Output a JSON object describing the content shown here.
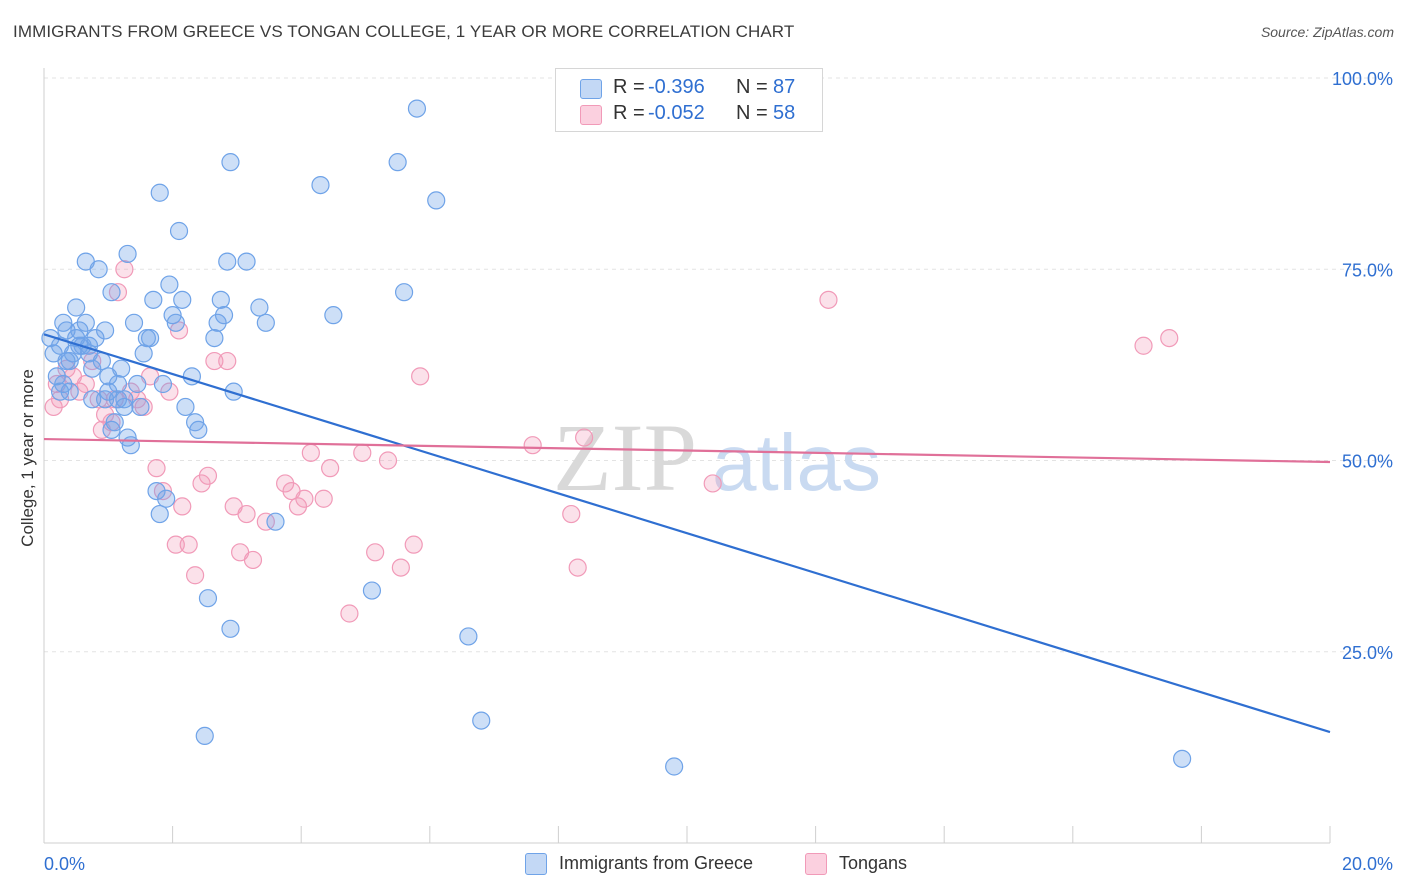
{
  "title": "IMMIGRANTS FROM GREECE VS TONGAN COLLEGE, 1 YEAR OR MORE CORRELATION CHART",
  "source": "Source: ZipAtlas.com",
  "watermark": {
    "zip": "ZIP",
    "atlas": "atlas"
  },
  "legend_top": [
    {
      "r_label": "R =",
      "r_value": "-0.396",
      "n_label": "N =",
      "n_value": "87"
    },
    {
      "r_label": "R =",
      "r_value": "-0.052",
      "n_label": "N =",
      "n_value": "58"
    }
  ],
  "colors": {
    "blue": "#6fa3e8",
    "blue_line": "#2f6fd1",
    "pink": "#f19ab8",
    "pink_line": "#e07099",
    "tick_text": "#2f6fd1"
  },
  "chart_data": {
    "type": "scatter",
    "xlabel": "",
    "ylabel": "College, 1 year or more",
    "xlim": [
      0,
      20
    ],
    "ylim": [
      0,
      100
    ],
    "x_tick_labels": [
      "0.0%",
      "20.0%"
    ],
    "y_ticks": [
      25,
      50,
      75,
      100
    ],
    "y_tick_labels": [
      "25.0%",
      "50.0%",
      "75.0%",
      "100.0%"
    ],
    "grid": true,
    "series": [
      {
        "name": "Immigrants from Greece",
        "color": "#6fa3e8",
        "trend": {
          "x": [
            0,
            20
          ],
          "y": [
            66.5,
            14.5
          ]
        },
        "points": [
          [
            0.1,
            66
          ],
          [
            0.15,
            64
          ],
          [
            0.2,
            61
          ],
          [
            0.25,
            59
          ],
          [
            0.3,
            68
          ],
          [
            0.35,
            67
          ],
          [
            0.4,
            63
          ],
          [
            0.45,
            64
          ],
          [
            0.5,
            66
          ],
          [
            0.55,
            67
          ],
          [
            0.6,
            65
          ],
          [
            0.65,
            68
          ],
          [
            0.7,
            64
          ],
          [
            0.75,
            58
          ],
          [
            0.8,
            66
          ],
          [
            0.9,
            63
          ],
          [
            0.95,
            67
          ],
          [
            1.0,
            59
          ],
          [
            1.05,
            54
          ],
          [
            1.1,
            55
          ],
          [
            1.15,
            60
          ],
          [
            1.2,
            62
          ],
          [
            1.25,
            57
          ],
          [
            1.3,
            53
          ],
          [
            1.35,
            52
          ],
          [
            1.4,
            68
          ],
          [
            1.45,
            60
          ],
          [
            1.5,
            57
          ],
          [
            1.55,
            64
          ],
          [
            1.6,
            66
          ],
          [
            1.7,
            71
          ],
          [
            1.75,
            46
          ],
          [
            1.8,
            43
          ],
          [
            1.85,
            60
          ],
          [
            1.9,
            45
          ],
          [
            1.95,
            73
          ],
          [
            2.0,
            69
          ],
          [
            2.05,
            68
          ],
          [
            2.15,
            71
          ],
          [
            2.2,
            57
          ],
          [
            2.35,
            55
          ],
          [
            2.4,
            54
          ],
          [
            2.55,
            32
          ],
          [
            2.65,
            66
          ],
          [
            2.7,
            68
          ],
          [
            2.75,
            71
          ],
          [
            2.8,
            69
          ],
          [
            2.85,
            76
          ],
          [
            2.9,
            28
          ],
          [
            2.95,
            59
          ],
          [
            3.15,
            76
          ],
          [
            3.35,
            70
          ],
          [
            3.45,
            68
          ],
          [
            3.6,
            42
          ],
          [
            4.3,
            86
          ],
          [
            4.5,
            69
          ],
          [
            5.1,
            33
          ],
          [
            5.5,
            89
          ],
          [
            5.6,
            72
          ],
          [
            5.8,
            96
          ],
          [
            6.1,
            84
          ],
          [
            6.6,
            27
          ],
          [
            6.8,
            16
          ],
          [
            9.8,
            10
          ],
          [
            17.7,
            11
          ],
          [
            2.5,
            14
          ],
          [
            1.8,
            85
          ],
          [
            2.1,
            80
          ],
          [
            2.9,
            89
          ],
          [
            1.3,
            77
          ],
          [
            0.85,
            75
          ],
          [
            0.65,
            76
          ],
          [
            1.05,
            72
          ],
          [
            0.5,
            70
          ],
          [
            0.7,
            65
          ],
          [
            1.25,
            58
          ],
          [
            0.35,
            63
          ],
          [
            0.95,
            58
          ],
          [
            1.65,
            66
          ],
          [
            0.25,
            65
          ],
          [
            0.4,
            59
          ],
          [
            0.3,
            60
          ],
          [
            2.3,
            61
          ],
          [
            1.0,
            61
          ],
          [
            1.15,
            58
          ],
          [
            0.55,
            65
          ],
          [
            0.75,
            62
          ]
        ]
      },
      {
        "name": "Tongans",
        "color": "#f19ab8",
        "trend": {
          "x": [
            0,
            20
          ],
          "y": [
            52.8,
            49.8
          ]
        },
        "points": [
          [
            0.15,
            57
          ],
          [
            0.2,
            60
          ],
          [
            0.25,
            58
          ],
          [
            0.35,
            62
          ],
          [
            0.45,
            61
          ],
          [
            0.55,
            59
          ],
          [
            0.65,
            60
          ],
          [
            0.75,
            63
          ],
          [
            0.85,
            58
          ],
          [
            0.95,
            56
          ],
          [
            1.05,
            55
          ],
          [
            1.15,
            72
          ],
          [
            1.25,
            75
          ],
          [
            1.35,
            59
          ],
          [
            1.45,
            58
          ],
          [
            1.55,
            57
          ],
          [
            1.65,
            61
          ],
          [
            1.75,
            49
          ],
          [
            1.85,
            46
          ],
          [
            1.95,
            59
          ],
          [
            2.05,
            39
          ],
          [
            2.15,
            44
          ],
          [
            2.25,
            39
          ],
          [
            2.35,
            35
          ],
          [
            2.45,
            47
          ],
          [
            2.55,
            48
          ],
          [
            2.65,
            63
          ],
          [
            2.85,
            63
          ],
          [
            2.95,
            44
          ],
          [
            3.05,
            38
          ],
          [
            3.15,
            43
          ],
          [
            3.25,
            37
          ],
          [
            3.45,
            42
          ],
          [
            3.75,
            47
          ],
          [
            3.85,
            46
          ],
          [
            3.95,
            44
          ],
          [
            4.05,
            45
          ],
          [
            4.15,
            51
          ],
          [
            4.35,
            45
          ],
          [
            4.45,
            49
          ],
          [
            4.75,
            30
          ],
          [
            4.95,
            51
          ],
          [
            5.15,
            38
          ],
          [
            5.35,
            50
          ],
          [
            5.55,
            36
          ],
          [
            5.75,
            39
          ],
          [
            5.85,
            61
          ],
          [
            7.6,
            52
          ],
          [
            8.2,
            43
          ],
          [
            8.3,
            36
          ],
          [
            8.4,
            53
          ],
          [
            10.4,
            47
          ],
          [
            12.2,
            71
          ],
          [
            17.1,
            65
          ],
          [
            17.5,
            66
          ],
          [
            1.1,
            58
          ],
          [
            0.9,
            54
          ],
          [
            2.1,
            67
          ]
        ]
      }
    ]
  },
  "legend_bottom": [
    "Immigrants from Greece",
    "Tongans"
  ]
}
